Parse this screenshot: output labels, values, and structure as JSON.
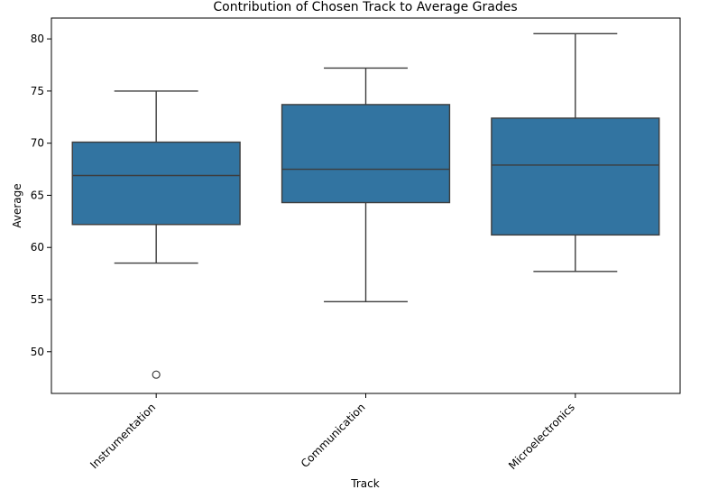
{
  "chart_data": {
    "type": "box",
    "title": "Contribution of Chosen Track to Average Grades",
    "xlabel": "Track",
    "ylabel": "Average",
    "ylim": [
      46.0,
      82.0
    ],
    "yticks": [
      50,
      55,
      60,
      65,
      70,
      75,
      80
    ],
    "grid": false,
    "box_color": "#3274a1",
    "line_color": "#3d3d3d",
    "categories": [
      "Instrumentation",
      "Communication",
      "Microelectronics"
    ],
    "boxes": [
      {
        "category": "Instrumentation",
        "whisker_low": 58.5,
        "q1": 62.2,
        "median": 66.9,
        "q3": 70.1,
        "whisker_high": 75.0,
        "outliers": [
          47.8
        ]
      },
      {
        "category": "Communication",
        "whisker_low": 54.8,
        "q1": 64.3,
        "median": 67.5,
        "q3": 73.7,
        "whisker_high": 77.2,
        "outliers": []
      },
      {
        "category": "Microelectronics",
        "whisker_low": 57.7,
        "q1": 61.2,
        "median": 67.9,
        "q3": 72.4,
        "whisker_high": 80.5,
        "outliers": []
      }
    ]
  }
}
